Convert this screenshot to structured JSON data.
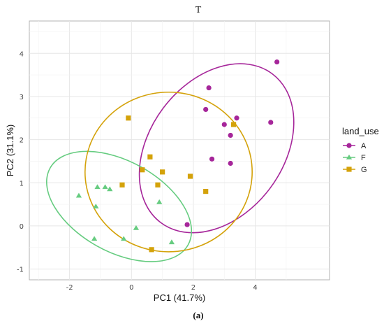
{
  "chart_data": {
    "type": "scatter",
    "title": "T",
    "xlabel": "PC1 (41.7%)",
    "ylabel": "PC2 (31.1%)",
    "xlim": [
      -3.3,
      6.4
    ],
    "ylim": [
      -1.25,
      4.75
    ],
    "xticks": [
      -2,
      0,
      2,
      4
    ],
    "yticks": [
      -1,
      0,
      1,
      2,
      3,
      4
    ],
    "grid": true,
    "legend": {
      "title": "land_use",
      "placement": "right"
    },
    "caption": "(a)",
    "series": [
      {
        "name": "A",
        "color": "#a6269a",
        "marker": "circle",
        "points": [
          {
            "x": 4.7,
            "y": 3.8
          },
          {
            "x": 2.5,
            "y": 3.2
          },
          {
            "x": 2.4,
            "y": 2.7
          },
          {
            "x": 3.4,
            "y": 2.5
          },
          {
            "x": 3.0,
            "y": 2.35
          },
          {
            "x": 4.5,
            "y": 2.4
          },
          {
            "x": 3.2,
            "y": 2.1
          },
          {
            "x": 2.6,
            "y": 1.55
          },
          {
            "x": 3.2,
            "y": 1.45
          },
          {
            "x": 1.8,
            "y": 0.03
          }
        ],
        "ellipse": {
          "cx": 2.75,
          "cy": 1.8,
          "rx": 3.0,
          "ry": 1.55,
          "angle_deg": 53
        }
      },
      {
        "name": "F",
        "color": "#66cc80",
        "marker": "triangle",
        "points": [
          {
            "x": -1.7,
            "y": 0.7
          },
          {
            "x": -1.1,
            "y": 0.9
          },
          {
            "x": -0.85,
            "y": 0.9
          },
          {
            "x": -0.7,
            "y": 0.85
          },
          {
            "x": -1.15,
            "y": 0.45
          },
          {
            "x": 0.15,
            "y": -0.05
          },
          {
            "x": -0.25,
            "y": -0.3
          },
          {
            "x": -1.2,
            "y": -0.3
          },
          {
            "x": 1.3,
            "y": -0.38
          },
          {
            "x": 0.9,
            "y": 0.55
          }
        ],
        "ellipse": {
          "cx": -0.4,
          "cy": 0.45,
          "rx": 2.55,
          "ry": 1.05,
          "angle_deg": -29
        }
      },
      {
        "name": "G",
        "color": "#d4a20a",
        "marker": "square",
        "points": [
          {
            "x": -0.1,
            "y": 2.5
          },
          {
            "x": 3.3,
            "y": 2.35
          },
          {
            "x": 0.6,
            "y": 1.6
          },
          {
            "x": 0.35,
            "y": 1.3
          },
          {
            "x": 1.0,
            "y": 1.25
          },
          {
            "x": 1.9,
            "y": 1.15
          },
          {
            "x": -0.3,
            "y": 0.95
          },
          {
            "x": 0.85,
            "y": 0.95
          },
          {
            "x": 2.4,
            "y": 0.8
          },
          {
            "x": 0.65,
            "y": -0.55
          }
        ],
        "ellipse": {
          "cx": 1.2,
          "cy": 1.25,
          "rx": 2.7,
          "ry": 1.85,
          "angle_deg": 0
        }
      }
    ]
  }
}
